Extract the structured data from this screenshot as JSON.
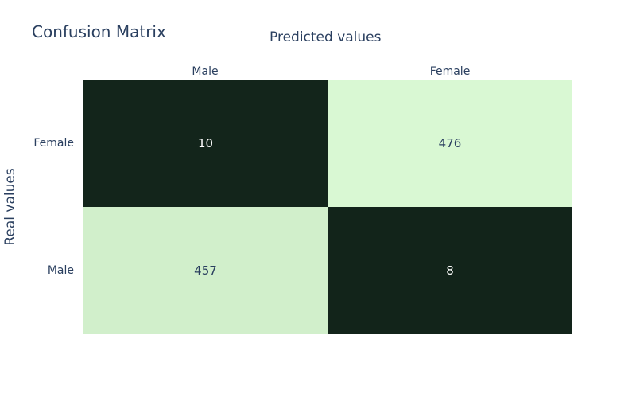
{
  "chart_data": {
    "type": "heatmap",
    "title": "Confusion Matrix",
    "xlabel": "Predicted values",
    "ylabel": "Real values",
    "x_categories": [
      "Male",
      "Female"
    ],
    "y_categories": [
      "Female",
      "Male"
    ],
    "z": [
      [
        10,
        476
      ],
      [
        457,
        8
      ]
    ],
    "colorscale": {
      "low": "#12241a",
      "high": "#d9f8d3"
    },
    "zrange": [
      8,
      476
    ],
    "legend": "none"
  }
}
